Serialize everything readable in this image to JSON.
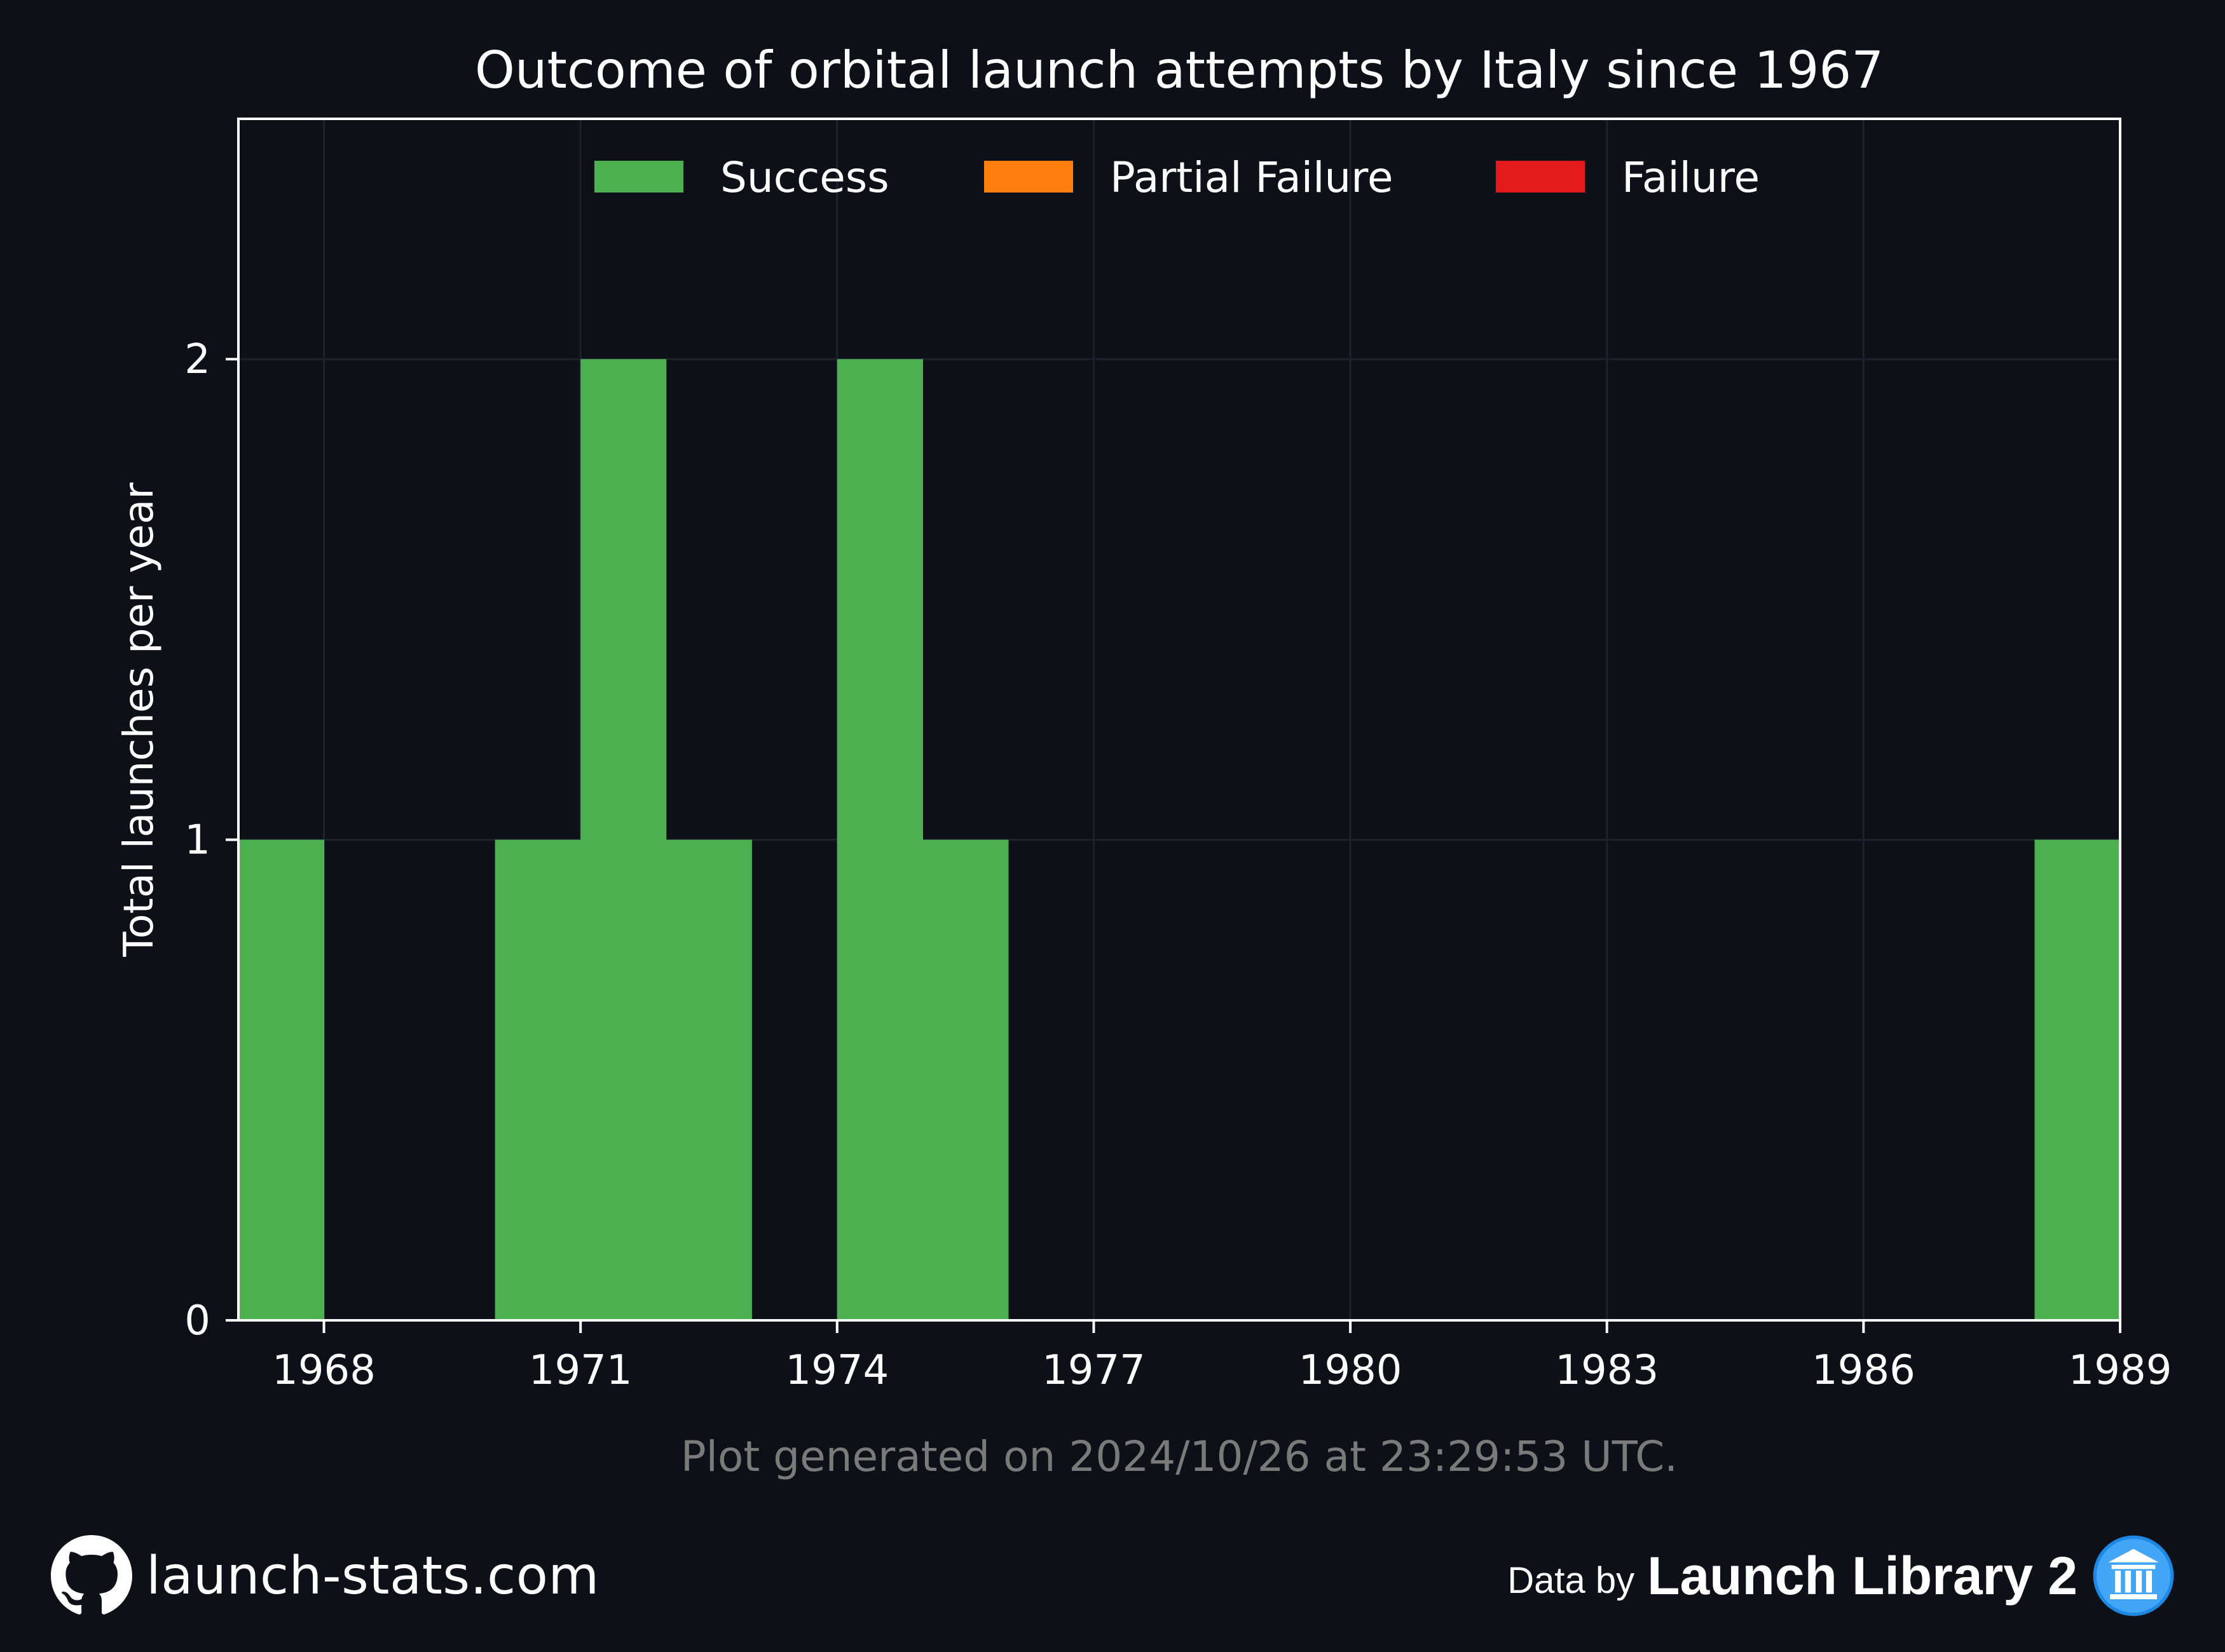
{
  "chart_data": {
    "type": "bar",
    "title": "Outcome of orbital launch attempts by Italy since 1967",
    "xlabel": "",
    "ylabel": "Total launches per year",
    "xlim": [
      1967,
      1989
    ],
    "ylim": [
      0,
      2.5
    ],
    "x_ticks": [
      1968,
      1971,
      1974,
      1977,
      1980,
      1983,
      1986,
      1989
    ],
    "y_ticks": [
      0,
      1,
      2
    ],
    "grid": true,
    "legend_position": "top-center",
    "categories": [
      1967,
      1968,
      1969,
      1970,
      1971,
      1972,
      1973,
      1974,
      1975,
      1976,
      1977,
      1978,
      1979,
      1980,
      1981,
      1982,
      1983,
      1984,
      1985,
      1986,
      1987,
      1988
    ],
    "series": [
      {
        "name": "Success",
        "color": "#4caf50",
        "values": [
          1,
          0,
          0,
          1,
          2,
          1,
          0,
          2,
          1,
          0,
          0,
          0,
          0,
          0,
          0,
          0,
          0,
          0,
          0,
          0,
          0,
          1
        ]
      },
      {
        "name": "Partial Failure",
        "color": "#ff7f0e",
        "values": [
          0,
          0,
          0,
          0,
          0,
          0,
          0,
          0,
          0,
          0,
          0,
          0,
          0,
          0,
          0,
          0,
          0,
          0,
          0,
          0,
          0,
          0
        ]
      },
      {
        "name": "Failure",
        "color": "#e31a1c",
        "values": [
          0,
          0,
          0,
          0,
          0,
          0,
          0,
          0,
          0,
          0,
          0,
          0,
          0,
          0,
          0,
          0,
          0,
          0,
          0,
          0,
          0,
          0
        ]
      }
    ]
  },
  "footer": {
    "generated_text": "Plot generated on 2024/10/26 at 23:29:53 UTC.",
    "site": "launch-stats.com",
    "data_by": "Data by",
    "source": "Launch Library 2"
  },
  "colors": {
    "background": "#0d1017",
    "axes": "#ffffff",
    "grid": "#1c212b",
    "footnote": "#7a7a7a"
  },
  "icons": {
    "site_icon": "github-icon",
    "source_icon": "launch-library-logo"
  }
}
